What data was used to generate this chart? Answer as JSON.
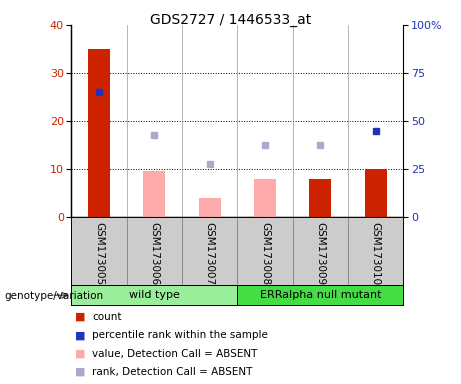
{
  "title": "GDS2727 / 1446533_at",
  "samples": [
    "GSM173005",
    "GSM173006",
    "GSM173007",
    "GSM173008",
    "GSM173009",
    "GSM173010"
  ],
  "red_bars": [
    35,
    0,
    0,
    0,
    8,
    10
  ],
  "pink_bars": [
    0,
    9.5,
    4.0,
    8.0,
    0,
    0
  ],
  "blue_squares_left_val": [
    26,
    null,
    null,
    null,
    null,
    18
  ],
  "lightblue_squares_left_val": [
    null,
    17,
    11,
    15,
    15,
    null
  ],
  "ylim_left": [
    0,
    40
  ],
  "ylim_right": [
    0,
    100
  ],
  "yticks_left": [
    0,
    10,
    20,
    30,
    40
  ],
  "yticks_right": [
    0,
    25,
    50,
    75,
    100
  ],
  "ytick_labels_right": [
    "0",
    "25",
    "50",
    "75",
    "100%"
  ],
  "group1_label": "wild type",
  "group2_label": "ERRalpha null mutant",
  "legend_items": [
    "count",
    "percentile rank within the sample",
    "value, Detection Call = ABSENT",
    "rank, Detection Call = ABSENT"
  ],
  "colors": {
    "red": "#cc2200",
    "pink": "#ffaaaa",
    "blue": "#2233bb",
    "lightblue": "#aaaacc",
    "group1_bg": "#99ee99",
    "group2_bg": "#44dd44",
    "label_bg": "#cccccc"
  },
  "bar_width": 0.4
}
